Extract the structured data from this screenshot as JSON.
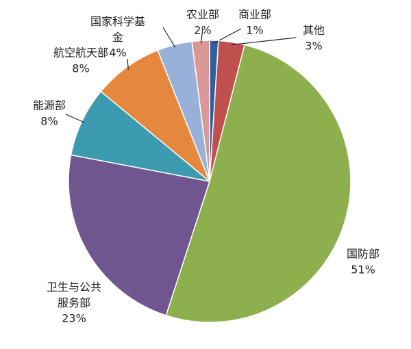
{
  "chart_data": {
    "type": "pie",
    "categories": [
      "商业部",
      "其他",
      "国防部",
      "卫生与公共服务部",
      "能源部",
      "航空航天部",
      "国家科学基金",
      "农业部"
    ],
    "values": [
      1,
      3,
      51,
      23,
      8,
      8,
      4,
      2
    ],
    "value_labels": [
      "1%",
      "3%",
      "51%",
      "23%",
      "8%",
      "8%",
      "4%",
      "2%"
    ],
    "colors": [
      "#2f5f9e",
      "#c0504d",
      "#8eaf4d",
      "#70568f",
      "#3d9bb1",
      "#e3883c",
      "#97b1d9",
      "#d99896"
    ]
  }
}
